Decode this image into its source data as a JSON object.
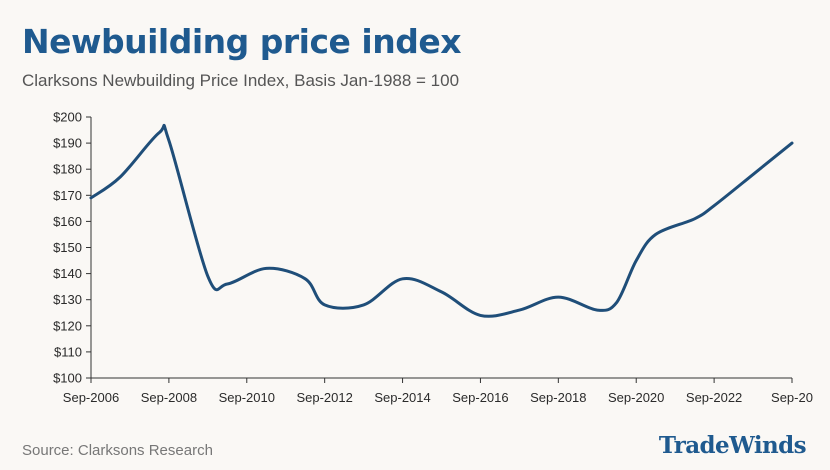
{
  "header": {
    "title": "Newbuilding price index",
    "subtitle": "Clarksons Newbuilding Price Index, Basis Jan-1988 = 100"
  },
  "footer": {
    "source": "Source: Clarksons Research",
    "brand": "TradeWinds"
  },
  "colors": {
    "line": "#1f4e79",
    "title": "#1f5a8f",
    "background": "#faf8f5"
  },
  "chart_data": {
    "type": "line",
    "title": "Newbuilding price index",
    "subtitle": "Clarksons Newbuilding Price Index, Basis Jan-1988 = 100",
    "xlabel": "",
    "ylabel": "",
    "x_ticks": [
      "Sep-2006",
      "Sep-2008",
      "Sep-2010",
      "Sep-2012",
      "Sep-2014",
      "Sep-2016",
      "Sep-2018",
      "Sep-2020",
      "Sep-2022",
      "Sep-20"
    ],
    "y_ticks": [
      "$100",
      "$110",
      "$120",
      "$130",
      "$140",
      "$150",
      "$160",
      "$170",
      "$180",
      "$190",
      "$200"
    ],
    "ylim": [
      100,
      200
    ],
    "xlim": [
      "2006-09",
      "2024-09"
    ],
    "grid": false,
    "series": [
      {
        "x": [
          "2006-09",
          "2007-06",
          "2008-06",
          "2008-09",
          "2009-09",
          "2010-03",
          "2011-03",
          "2012-03",
          "2012-09",
          "2013-09",
          "2014-09",
          "2015-09",
          "2016-09",
          "2017-09",
          "2018-09",
          "2019-09",
          "2020-03",
          "2020-09",
          "2021-03",
          "2022-03",
          "2022-09",
          "2023-09",
          "2024-09"
        ],
        "values": [
          169,
          177,
          194,
          191,
          139,
          136,
          142,
          138,
          128,
          128,
          138,
          133,
          124,
          126,
          131,
          126,
          129,
          145,
          155,
          161,
          166,
          178,
          190
        ]
      }
    ]
  }
}
